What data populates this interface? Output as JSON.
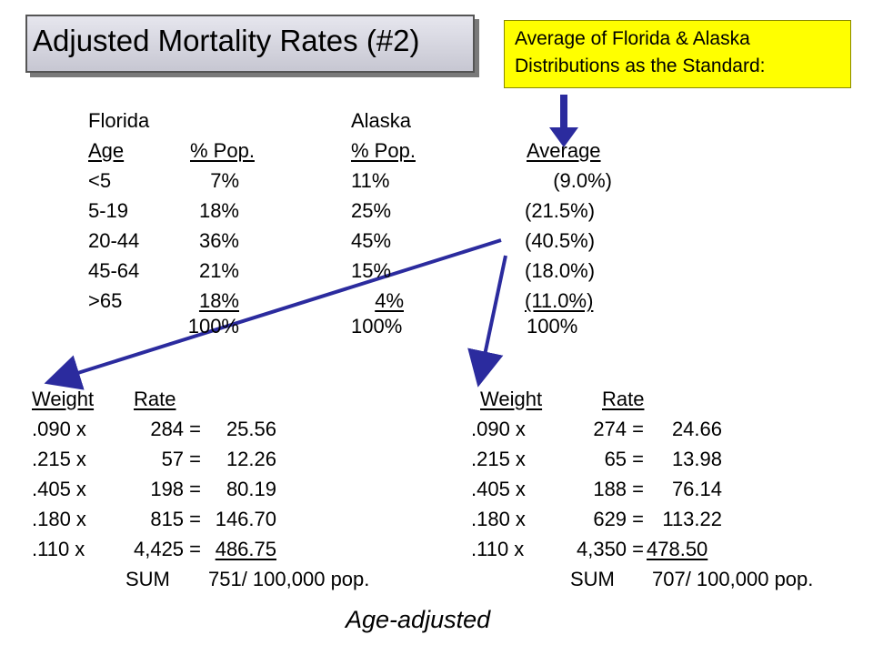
{
  "title": "Adjusted Mortality Rates (#2)",
  "note": {
    "line1": "Average of Florida & Alaska",
    "line2": "Distributions as the Standard:"
  },
  "headers": {
    "florida": "Florida",
    "alaska": "Alaska",
    "age": "Age",
    "pct_pop_fl": "% Pop.",
    "pct_pop_ak": "% Pop.",
    "average": "Average"
  },
  "distribution": {
    "ages": [
      "<5",
      "5-19",
      "20-44",
      "45-64",
      ">65"
    ],
    "florida": [
      "7%",
      "18%",
      "36%",
      "21%",
      "18%"
    ],
    "alaska": [
      "11%",
      "25%",
      "45%",
      "15%",
      "4%"
    ],
    "average": [
      "(9.0%)",
      "(21.5%)",
      "(40.5%)",
      "(18.0%)",
      "(11.0%)"
    ],
    "totals": {
      "florida": "100%",
      "alaska": "100%",
      "average": "100%"
    }
  },
  "left_calc": {
    "weight_header": "Weight",
    "rate_header": "Rate",
    "weights": [
      ".090 x",
      ".215 x",
      ".405 x",
      ".180 x",
      ".110 x"
    ],
    "rates": [
      "284 =",
      "57 =",
      "198 =",
      "815 =",
      "4,425 ="
    ],
    "products": [
      "25.56",
      "12.26",
      "80.19",
      "146.70",
      "486.75"
    ],
    "sum_label": "SUM",
    "sum_value": "751/ 100,000 pop."
  },
  "right_calc": {
    "weight_header": "Weight",
    "rate_header": "Rate",
    "weights": [
      ".090 x",
      ".215 x",
      ".405 x",
      ".180 x",
      ".110 x"
    ],
    "rates": [
      "274 =",
      "65 =",
      "188 =",
      "629 =",
      "4,350 ="
    ],
    "products": [
      "24.66",
      "13.98",
      "76.14",
      "113.22",
      "478.50"
    ],
    "sum_label": "SUM",
    "sum_value": "707/ 100,000 pop."
  },
  "footer": "Age-adjusted",
  "colors": {
    "arrow": "#2b2b9e",
    "note_bg": "#ffff00"
  }
}
